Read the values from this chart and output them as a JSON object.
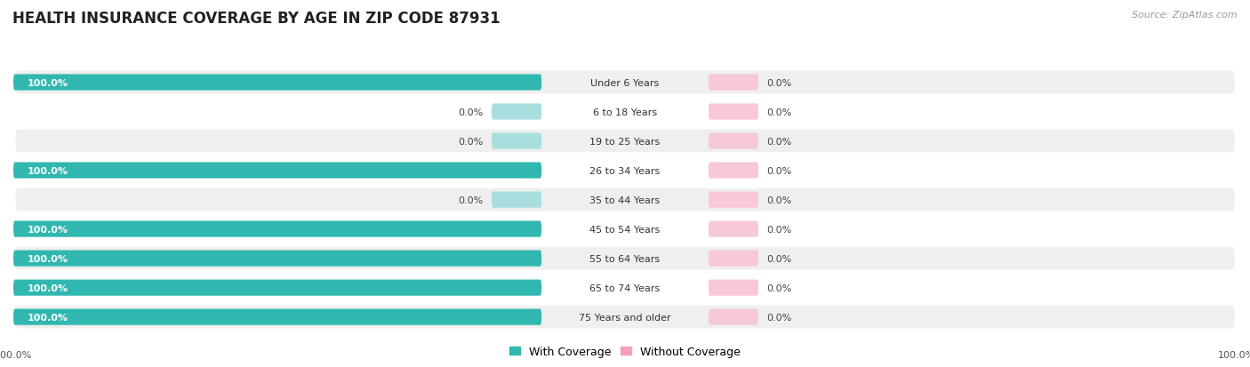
{
  "title": "HEALTH INSURANCE COVERAGE BY AGE IN ZIP CODE 87931",
  "source": "Source: ZipAtlas.com",
  "categories": [
    "Under 6 Years",
    "6 to 18 Years",
    "19 to 25 Years",
    "26 to 34 Years",
    "35 to 44 Years",
    "45 to 54 Years",
    "55 to 64 Years",
    "65 to 74 Years",
    "75 Years and older"
  ],
  "with_coverage": [
    100.0,
    0.0,
    0.0,
    100.0,
    0.0,
    100.0,
    100.0,
    100.0,
    100.0
  ],
  "without_coverage": [
    0.0,
    0.0,
    0.0,
    0.0,
    0.0,
    0.0,
    0.0,
    0.0,
    0.0
  ],
  "color_with": "#30b8b0",
  "color_with_stub": "#a8dedd",
  "color_without": "#f4a0b8",
  "color_without_stub": "#f7c8d8",
  "row_color_even": "#efefef",
  "row_color_odd": "#ffffff",
  "title_fontsize": 12,
  "label_fontsize": 8,
  "annot_fontsize": 8,
  "legend_fontsize": 9,
  "source_fontsize": 8,
  "fig_width": 14.06,
  "fig_height": 4.14,
  "dpi": 100
}
